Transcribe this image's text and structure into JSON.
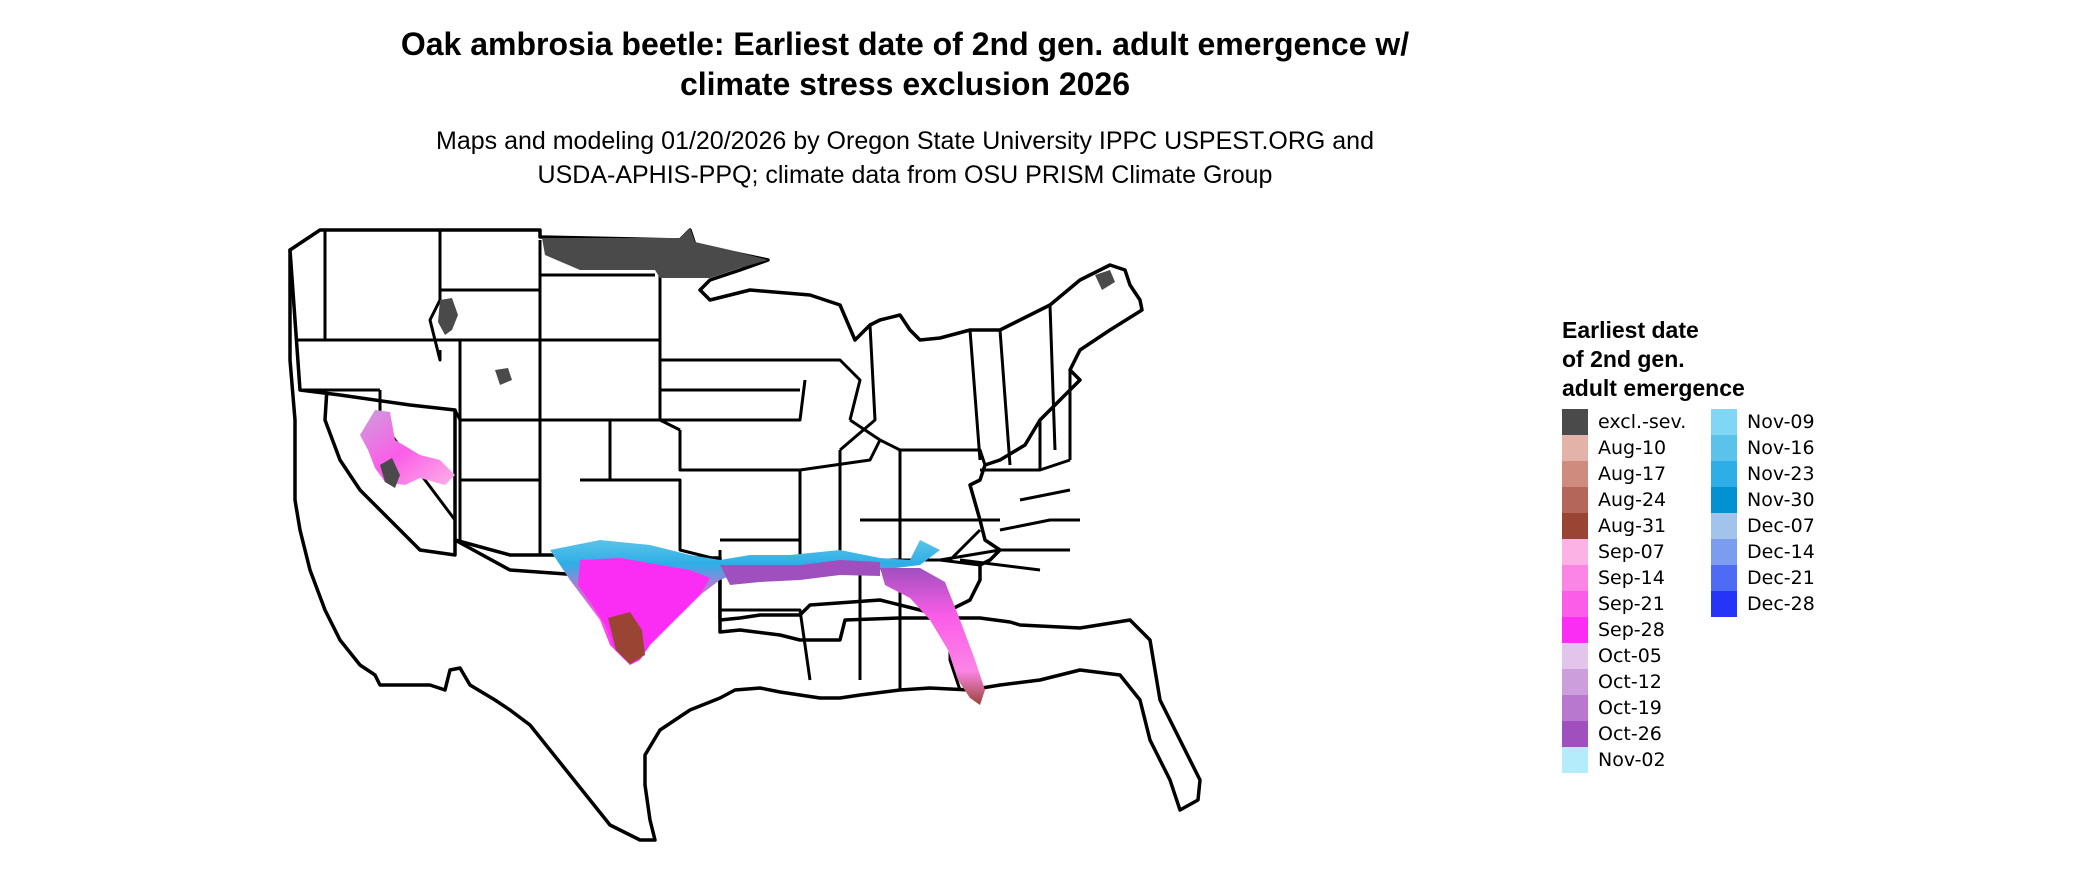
{
  "title_lines": [
    "Oak ambrosia beetle: Earliest date of 2nd gen. adult emergence w/",
    "climate stress exclusion 2026"
  ],
  "subtitle_lines": [
    "Maps and modeling 01/20/2026 by Oregon State University IPPC USPEST.ORG and",
    "USDA-APHIS-PPQ; climate data from OSU PRISM Climate Group"
  ],
  "legend": {
    "title_lines": [
      "Earliest date",
      "of 2nd gen.",
      "adult emergence"
    ],
    "items": [
      {
        "label": "excl.-sev.",
        "color": "#4a4a4a"
      },
      {
        "label": "Aug-10",
        "color": "#e3b3a9"
      },
      {
        "label": "Aug-17",
        "color": "#cf8c7e"
      },
      {
        "label": "Aug-24",
        "color": "#b5665a"
      },
      {
        "label": "Aug-31",
        "color": "#9a4434"
      },
      {
        "label": "Sep-07",
        "color": "#fdb2e6"
      },
      {
        "label": "Sep-14",
        "color": "#fb85e6"
      },
      {
        "label": "Sep-21",
        "color": "#fb5ce8"
      },
      {
        "label": "Sep-28",
        "color": "#fb2df5"
      },
      {
        "label": "Oct-05",
        "color": "#e3c4ea"
      },
      {
        "label": "Oct-12",
        "color": "#cc9fdc"
      },
      {
        "label": "Oct-19",
        "color": "#b878d0"
      },
      {
        "label": "Oct-26",
        "color": "#a050be"
      },
      {
        "label": "Nov-02",
        "color": "#b4ecfb"
      },
      {
        "label": "Nov-09",
        "color": "#80d6f5"
      },
      {
        "label": "Nov-16",
        "color": "#5bc3ea"
      },
      {
        "label": "Nov-23",
        "color": "#2daee6"
      },
      {
        "label": "Nov-30",
        "color": "#0391d1"
      },
      {
        "label": "Dec-07",
        "color": "#a1c3ec"
      },
      {
        "label": "Dec-14",
        "color": "#7c9cef"
      },
      {
        "label": "Dec-21",
        "color": "#4f6af5"
      },
      {
        "label": "Dec-28",
        "color": "#2534f7"
      }
    ]
  },
  "colors": {
    "background": "#ffffff",
    "state_outline": "#000000",
    "land": "#ffffff",
    "excluded": "#4a4a4a"
  }
}
